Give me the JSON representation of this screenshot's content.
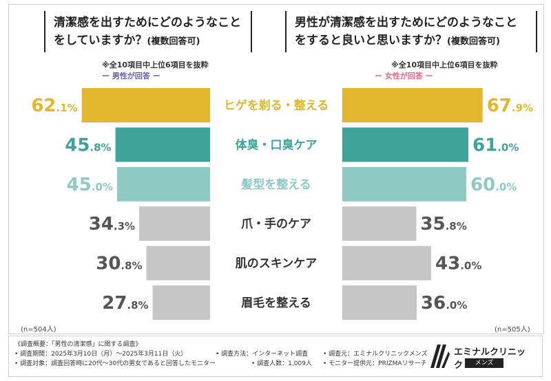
{
  "left_question": "清潔感を出すためにどのようなことをしていますか？",
  "left_question_suffix": "(複数回答可)",
  "right_question": "男性が清潔感を出すためにどのようなことをすると良いと思いますか？",
  "right_question_suffix": "(複数回答可)",
  "note": "※全10項目中上位6項目を抜粋",
  "left_respondent": "ー 男性が回答 ー",
  "right_respondent": "ー 女性が回答 ー",
  "left_n": "(n=504人)",
  "right_n": "(n=505人)",
  "colors": {
    "gold": "#e2b62d",
    "teal": "#3ea39b",
    "light_teal": "#8fc9c4",
    "gray": "#c6c6c6",
    "male_accent": "#6b5bb4",
    "female_accent": "#e46a8a"
  },
  "chart_data": {
    "type": "bar",
    "categories": [
      "ヒゲを剃る・整える",
      "体臭・口臭ケア",
      "髪型を整える",
      "爪・手のケア",
      "肌のスキンケア",
      "眉毛を整える"
    ],
    "series": [
      {
        "name": "男性が回答",
        "values": [
          62.1,
          45.8,
          45.0,
          34.3,
          30.8,
          27.8
        ]
      },
      {
        "name": "女性が回答",
        "values": [
          67.9,
          61.0,
          60.0,
          35.8,
          43.0,
          36.0
        ]
      }
    ],
    "labels_left": [
      [
        "62",
        ".1%"
      ],
      [
        "45",
        ".8%"
      ],
      [
        "45",
        ".0%"
      ],
      [
        "34",
        ".3%"
      ],
      [
        "30",
        ".8%"
      ],
      [
        "27",
        ".8%"
      ]
    ],
    "labels_right": [
      [
        "67",
        ".9%"
      ],
      [
        "61",
        ".0%"
      ],
      [
        "60",
        ".0%"
      ],
      [
        "35",
        ".8%"
      ],
      [
        "43",
        ".0%"
      ],
      [
        "36",
        ".0%"
      ]
    ],
    "bar_colors": [
      "#e2b62d",
      "#3ea39b",
      "#8fc9c4",
      "#c6c6c6",
      "#c6c6c6",
      "#c6c6c6"
    ],
    "label_colors": [
      "#e2b62d",
      "#3ea39b",
      "#8fc9c4",
      "#555555",
      "#555555",
      "#555555"
    ],
    "category_colors": [
      "#e2b62d",
      "#3ea39b",
      "#8fc9c4",
      "#333333",
      "#333333",
      "#333333"
    ]
  },
  "footer": {
    "line1": "《調査概要：「男性の清潔感」に関する調査》",
    "line2a": "• 調査期間：2025年3月10日（月）〜2025年3月11日（火）",
    "line2b": "• 調査方法：インターネット調査",
    "line2c": "• 調査元：エミナルクリニックメンズ",
    "line3a": "• 調査対象：調査回答時に20代〜30代の男女であると回答したモニター",
    "line3b": "• 調査人数：1,009人",
    "line3c": "• モニター提供元：PRIZMAリサーチ",
    "logo_name": "エミナルクリニック",
    "logo_sub": "メンズ"
  }
}
